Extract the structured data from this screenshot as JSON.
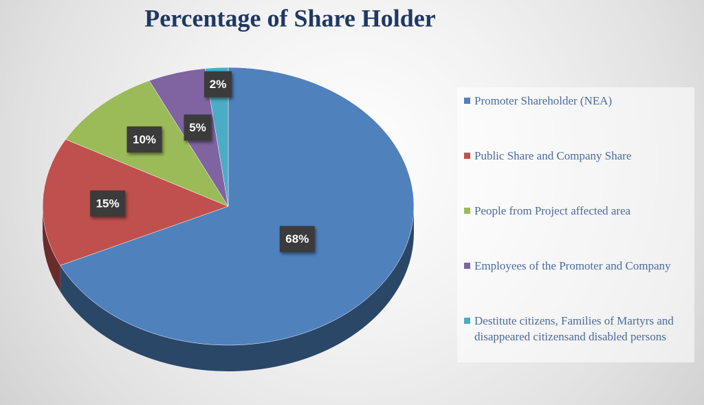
{
  "chart_data": {
    "type": "pie",
    "title": "Percentage of Share Holder",
    "categories": [
      "Promoter Shareholder (NEA)",
      "Public Share and Company Share",
      "People from Project affected area",
      "Employees of the Promoter and Company",
      "Destitute citizens, Families of Martyrs and disappeared citizensand disabled persons"
    ],
    "values": [
      68,
      15,
      10,
      5,
      2
    ],
    "value_labels": [
      "68%",
      "15%",
      "10%",
      "5%",
      "2%"
    ],
    "colors": [
      "#4f81bd",
      "#c0504d",
      "#9bbb59",
      "#8064a2",
      "#4bacc6"
    ],
    "legend": "right"
  }
}
